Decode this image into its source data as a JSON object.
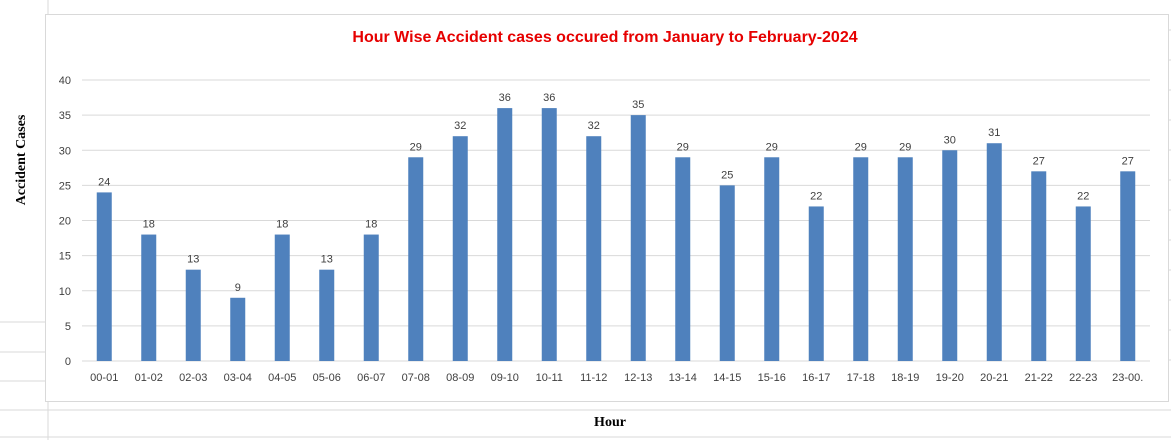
{
  "chart_data": {
    "type": "bar",
    "title": "Hour Wise Accident cases occured from January to February-2024",
    "xlabel": "Hour",
    "ylabel": "Accident Cases",
    "categories": [
      "00-01",
      "01-02",
      "02-03",
      "03-04",
      "04-05",
      "05-06",
      "06-07",
      "07-08",
      "08-09",
      "09-10",
      "10-11",
      "11-12",
      "12-13",
      "13-14",
      "14-15",
      "15-16",
      "16-17",
      "17-18",
      "18-19",
      "19-20",
      "20-21",
      "21-22",
      "22-23",
      "23-00."
    ],
    "values": [
      24,
      18,
      13,
      9,
      18,
      13,
      18,
      29,
      32,
      36,
      36,
      32,
      35,
      29,
      25,
      29,
      22,
      29,
      29,
      30,
      31,
      27,
      22,
      27
    ],
    "ylim": [
      0,
      40
    ],
    "yticks": [
      0,
      5,
      10,
      15,
      20,
      25,
      30,
      35,
      40
    ],
    "grid": true,
    "legend": "none",
    "data_labels": true,
    "colors": {
      "bar": "#4f81bd",
      "title": "#e60000",
      "grid": "#d9d9d9",
      "tick_text": "#404040"
    }
  }
}
